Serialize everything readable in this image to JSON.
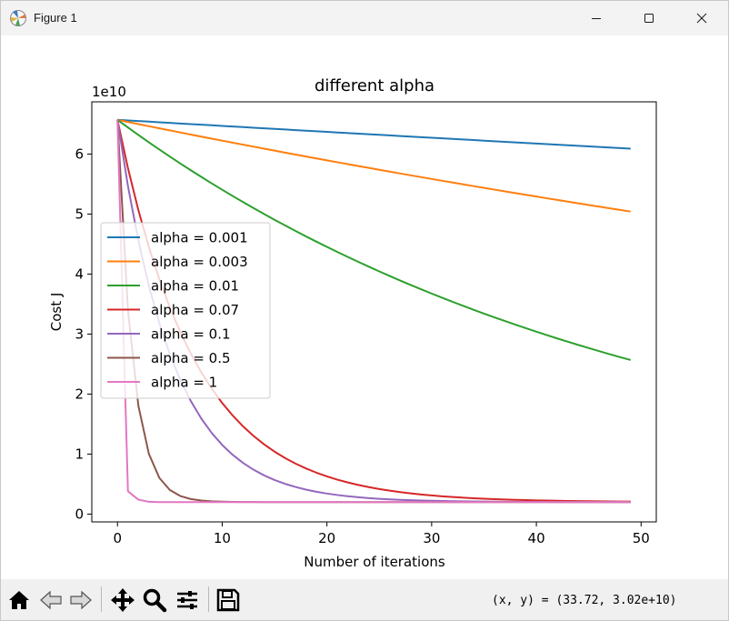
{
  "window": {
    "title": "Figure 1"
  },
  "toolbar": {
    "buttons": [
      {
        "name": "home-icon"
      },
      {
        "name": "back-icon"
      },
      {
        "name": "forward-icon"
      },
      {
        "name": "pan-icon"
      },
      {
        "name": "zoom-icon"
      },
      {
        "name": "configure-subplots-icon"
      },
      {
        "name": "save-icon"
      }
    ],
    "coords_readout": "(x, y) = (33.72, 3.02e+10)"
  },
  "chart_data": {
    "type": "line",
    "title": "different alpha",
    "xlabel": "Number of iterations",
    "ylabel": "Cost J",
    "y_offset_label": "1e10",
    "y_scale_factor": 10000000000,
    "xlim": [
      -2.45,
      51.45
    ],
    "ylim": [
      -0.13,
      6.87
    ],
    "x_ticks": [
      0,
      10,
      20,
      30,
      40,
      50
    ],
    "y_ticks": [
      0,
      1,
      2,
      3,
      4,
      5,
      6
    ],
    "x_tick_labels": [
      "0",
      "10",
      "20",
      "30",
      "40",
      "50"
    ],
    "y_tick_labels": [
      "0",
      "1",
      "2",
      "3",
      "4",
      "5",
      "6"
    ],
    "grid": false,
    "legend_position": "center-left",
    "x": [
      0,
      1,
      2,
      3,
      4,
      5,
      6,
      7,
      8,
      9,
      10,
      11,
      12,
      13,
      14,
      15,
      16,
      17,
      18,
      19,
      20,
      21,
      22,
      23,
      24,
      25,
      26,
      27,
      28,
      29,
      30,
      31,
      32,
      33,
      34,
      35,
      36,
      37,
      38,
      39,
      40,
      41,
      42,
      43,
      44,
      45,
      46,
      47,
      48,
      49
    ],
    "series": [
      {
        "name": "alpha = 0.001",
        "color": "#1f77b4",
        "equilibrium": 0.2,
        "start": 6.57,
        "rate": 0.0016
      },
      {
        "name": "alpha = 0.003",
        "color": "#ff7f0e",
        "equilibrium": 0.2,
        "start": 6.57,
        "rate": 0.0056
      },
      {
        "name": "alpha = 0.01",
        "color": "#2ca02c",
        "equilibrium": 0.2,
        "start": 6.57,
        "rate": 0.0202
      },
      {
        "name": "alpha = 0.07",
        "color": "#d62728",
        "equilibrium": 0.2,
        "start": 6.57,
        "rate": 0.135
      },
      {
        "name": "alpha = 0.1",
        "color": "#9467bd",
        "equilibrium": 0.2,
        "start": 6.57,
        "rate": 0.19
      },
      {
        "name": "alpha = 0.5",
        "color": "#8c564b",
        "equilibrium": 0.2,
        "start": 6.57,
        "rate": 0.69
      },
      {
        "name": "alpha = 1",
        "color": "#e377c2",
        "equilibrium": 0.2,
        "start": 6.57,
        "values_head": [
          6.57,
          0.38,
          0.24,
          0.205,
          0.2
        ]
      }
    ]
  }
}
